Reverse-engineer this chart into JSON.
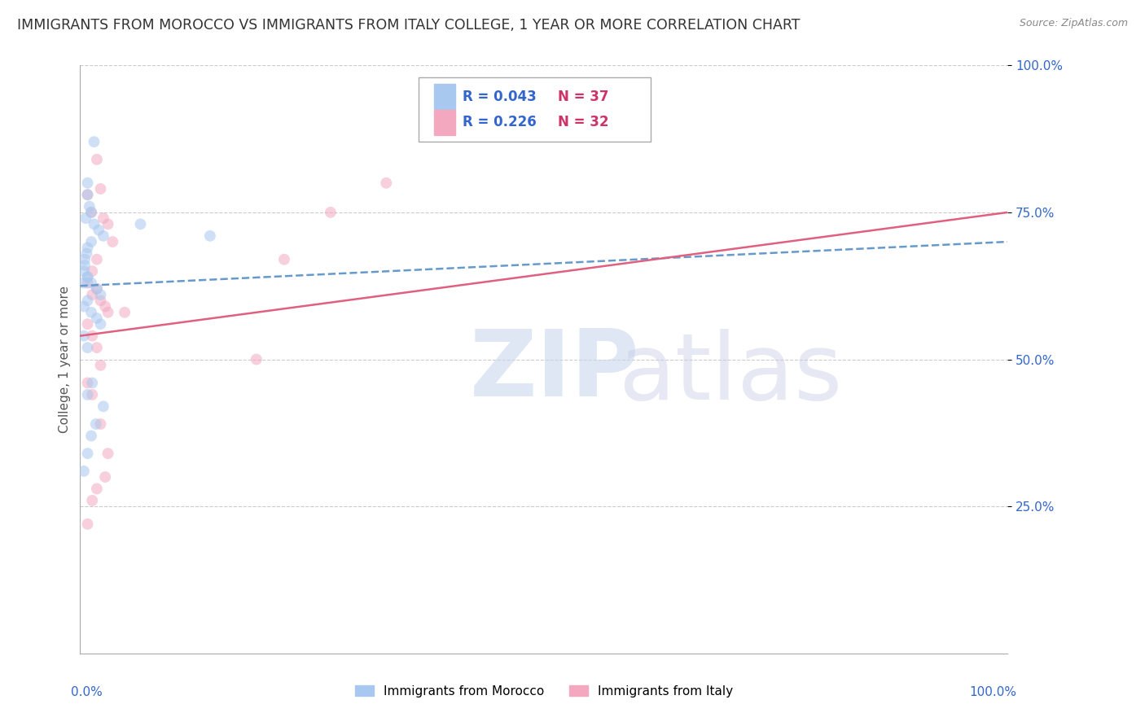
{
  "title": "IMMIGRANTS FROM MOROCCO VS IMMIGRANTS FROM ITALY COLLEGE, 1 YEAR OR MORE CORRELATION CHART",
  "source": "Source: ZipAtlas.com",
  "ylabel": "College, 1 year or more",
  "morocco_color": "#a8c8f0",
  "italy_color": "#f4a8c0",
  "morocco_line_color": "#6699cc",
  "italy_line_color": "#e06080",
  "morocco_R": 0.043,
  "morocco_N": 37,
  "italy_R": 0.226,
  "italy_N": 32,
  "legend_R_color": "#3366cc",
  "legend_N_color": "#cc3366",
  "grid_color": "#cccccc",
  "background_color": "#ffffff",
  "title_fontsize": 12.5,
  "axis_label_fontsize": 11,
  "tick_fontsize": 11,
  "scatter_size": 100,
  "scatter_alpha": 0.55,
  "line_width": 1.8,
  "morocco_scatter_x": [
    1.5,
    0.8,
    0.8,
    1.0,
    1.2,
    0.6,
    1.5,
    2.0,
    2.5,
    1.2,
    0.8,
    0.7,
    0.5,
    0.5,
    0.4,
    0.8,
    0.4,
    1.2,
    1.8,
    2.2,
    0.8,
    0.4,
    1.2,
    1.8,
    2.2,
    0.4,
    0.8,
    6.5,
    1.3,
    0.8,
    2.5,
    1.7,
    1.2,
    0.8,
    0.4,
    14.0,
    0.8
  ],
  "morocco_scatter_y": [
    87,
    80,
    78,
    76,
    75,
    74,
    73,
    72,
    71,
    70,
    69,
    68,
    67,
    66,
    65,
    64,
    63,
    63,
    62,
    61,
    60,
    59,
    58,
    57,
    56,
    54,
    52,
    73,
    46,
    44,
    42,
    39,
    37,
    34,
    31,
    71,
    64
  ],
  "italy_scatter_x": [
    1.8,
    2.2,
    0.8,
    1.2,
    2.5,
    3.0,
    3.5,
    1.8,
    1.3,
    0.8,
    1.8,
    1.3,
    2.2,
    2.7,
    3.0,
    0.8,
    1.3,
    1.8,
    2.2,
    4.8,
    0.8,
    1.3,
    2.2,
    3.0,
    2.7,
    1.8,
    1.3,
    0.8,
    19.0,
    22.0,
    27.0,
    33.0
  ],
  "italy_scatter_y": [
    84,
    79,
    78,
    75,
    74,
    73,
    70,
    67,
    65,
    63,
    62,
    61,
    60,
    59,
    58,
    56,
    54,
    52,
    49,
    58,
    46,
    44,
    39,
    34,
    30,
    28,
    26,
    22,
    50,
    67,
    75,
    80
  ],
  "morocco_line_x0": 0,
  "morocco_line_x1": 100,
  "morocco_line_y0": 62.5,
  "morocco_line_y1": 70.0,
  "italy_line_x0": 0,
  "italy_line_x1": 100,
  "italy_line_y0": 54.0,
  "italy_line_y1": 75.0,
  "xlim": [
    0,
    100
  ],
  "ylim": [
    0,
    100
  ],
  "ytick_positions": [
    25,
    50,
    75,
    100
  ],
  "ytick_labels": [
    "25.0%",
    "50.0%",
    "75.0%",
    "100.0%"
  ]
}
